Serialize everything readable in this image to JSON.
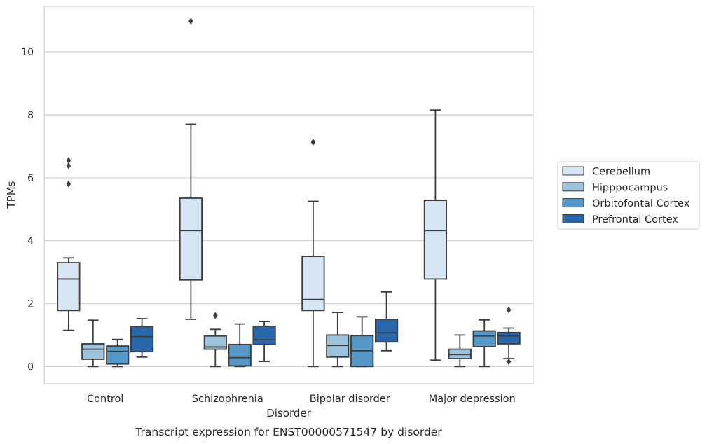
{
  "chart_data": {
    "type": "boxplot",
    "caption": "Transcript expression for ENST00000571547 by disorder",
    "xlabel": "Disorder",
    "ylabel": "TPMs",
    "ylim": [
      -0.55,
      11.45
    ],
    "yticks": [
      0,
      2,
      4,
      6,
      8,
      10
    ],
    "grid": "horizontal",
    "legend_position": "right",
    "categories": [
      "Control",
      "Schizophrenia",
      "Bipolar disorder",
      "Major depression"
    ],
    "series": [
      {
        "name": "Cerebellum",
        "color": "#d6e5f3",
        "boxes": [
          {
            "whisker_low": 1.15,
            "q1": 1.78,
            "median": 2.78,
            "q3": 3.3,
            "whisker_high": 3.45,
            "outliers": [
              5.8,
              6.38,
              6.55
            ]
          },
          {
            "whisker_low": 1.5,
            "q1": 2.75,
            "median": 4.32,
            "q3": 5.35,
            "whisker_high": 7.7,
            "outliers": [
              10.98
            ]
          },
          {
            "whisker_low": 0.0,
            "q1": 1.78,
            "median": 2.13,
            "q3": 3.5,
            "whisker_high": 5.25,
            "outliers": [
              7.13
            ]
          },
          {
            "whisker_low": 0.2,
            "q1": 2.78,
            "median": 4.32,
            "q3": 5.28,
            "whisker_high": 8.15,
            "outliers": []
          }
        ]
      },
      {
        "name": "Hipppocampus",
        "color": "#9cc4de",
        "boxes": [
          {
            "whisker_low": 0.0,
            "q1": 0.23,
            "median": 0.55,
            "q3": 0.72,
            "whisker_high": 1.47,
            "outliers": []
          },
          {
            "whisker_low": 0.0,
            "q1": 0.55,
            "median": 0.62,
            "q3": 0.97,
            "whisker_high": 1.18,
            "outliers": [
              1.62
            ]
          },
          {
            "whisker_low": 0.0,
            "q1": 0.3,
            "median": 0.67,
            "q3": 1.0,
            "whisker_high": 1.72,
            "outliers": []
          },
          {
            "whisker_low": 0.0,
            "q1": 0.25,
            "median": 0.38,
            "q3": 0.55,
            "whisker_high": 1.0,
            "outliers": []
          }
        ]
      },
      {
        "name": "Orbitofontal Cortex",
        "color": "#5597c7",
        "boxes": [
          {
            "whisker_low": 0.0,
            "q1": 0.08,
            "median": 0.48,
            "q3": 0.65,
            "whisker_high": 0.86,
            "outliers": []
          },
          {
            "whisker_low": 0.0,
            "q1": 0.02,
            "median": 0.28,
            "q3": 0.7,
            "whisker_high": 1.35,
            "outliers": []
          },
          {
            "whisker_low": 0.0,
            "q1": 0.0,
            "median": 0.5,
            "q3": 0.98,
            "whisker_high": 1.58,
            "outliers": []
          },
          {
            "whisker_low": 0.0,
            "q1": 0.63,
            "median": 0.97,
            "q3": 1.13,
            "whisker_high": 1.48,
            "outliers": []
          }
        ]
      },
      {
        "name": "Prefrontal Cortex",
        "color": "#2a67a8",
        "boxes": [
          {
            "whisker_low": 0.3,
            "q1": 0.47,
            "median": 0.95,
            "q3": 1.27,
            "whisker_high": 1.52,
            "outliers": []
          },
          {
            "whisker_low": 0.16,
            "q1": 0.7,
            "median": 0.85,
            "q3": 1.28,
            "whisker_high": 1.43,
            "outliers": []
          },
          {
            "whisker_low": 0.5,
            "q1": 0.78,
            "median": 1.07,
            "q3": 1.5,
            "whisker_high": 2.37,
            "outliers": []
          },
          {
            "whisker_low": 0.25,
            "q1": 0.72,
            "median": 0.97,
            "q3": 1.08,
            "whisker_high": 1.22,
            "outliers": [
              0.15,
              1.8
            ]
          }
        ]
      }
    ]
  }
}
